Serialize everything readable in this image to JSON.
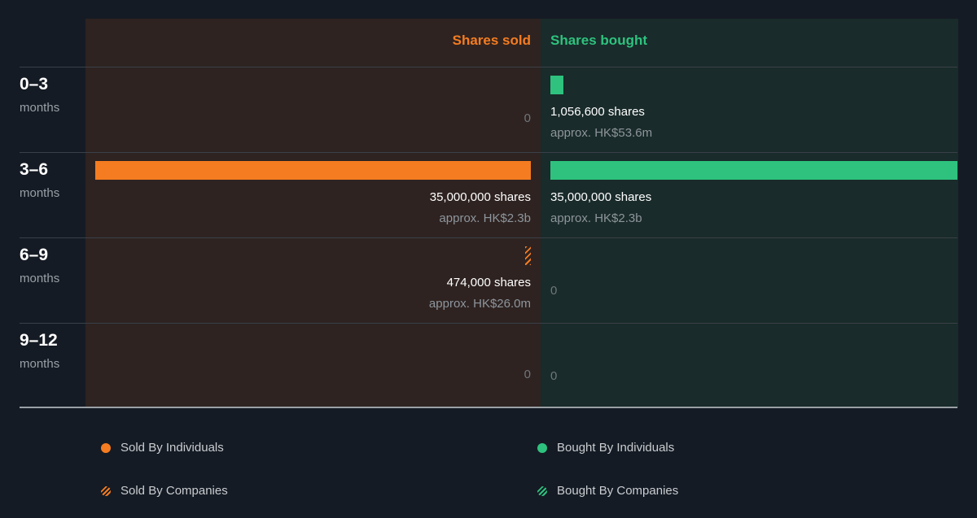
{
  "chart_data": {
    "type": "bar",
    "orientation": "horizontal-diverging",
    "columns": {
      "sold": "Shares sold",
      "bought": "Shares bought"
    },
    "colors": {
      "sold": "#f57c20",
      "bought": "#2ec27e"
    },
    "max_shares": 35000000,
    "rows": [
      {
        "range": "0–3",
        "unit": "months",
        "sold": {
          "shares": 0,
          "label": "0",
          "type": "individuals"
        },
        "bought": {
          "shares": 1056600,
          "label": "1,056,600 shares",
          "approx": "approx. HK$53.6m",
          "type": "individuals"
        }
      },
      {
        "range": "3–6",
        "unit": "months",
        "sold": {
          "shares": 35000000,
          "label": "35,000,000 shares",
          "approx": "approx. HK$2.3b",
          "type": "individuals"
        },
        "bought": {
          "shares": 35000000,
          "label": "35,000,000 shares",
          "approx": "approx. HK$2.3b",
          "type": "individuals"
        }
      },
      {
        "range": "6–9",
        "unit": "months",
        "sold": {
          "shares": 474000,
          "label": "474,000 shares",
          "approx": "approx. HK$26.0m",
          "type": "companies"
        },
        "bought": {
          "shares": 0,
          "label": "0",
          "type": "individuals"
        }
      },
      {
        "range": "9–12",
        "unit": "months",
        "sold": {
          "shares": 0,
          "label": "0",
          "type": "individuals"
        },
        "bought": {
          "shares": 0,
          "label": "0",
          "type": "individuals"
        }
      }
    ],
    "legend": [
      {
        "label": "Sold By Individuals",
        "side": "sold",
        "style": "solid"
      },
      {
        "label": "Bought By Individuals",
        "side": "bought",
        "style": "solid"
      },
      {
        "label": "Sold By Companies",
        "side": "sold",
        "style": "hatched"
      },
      {
        "label": "Bought By Companies",
        "side": "bought",
        "style": "hatched"
      }
    ]
  }
}
